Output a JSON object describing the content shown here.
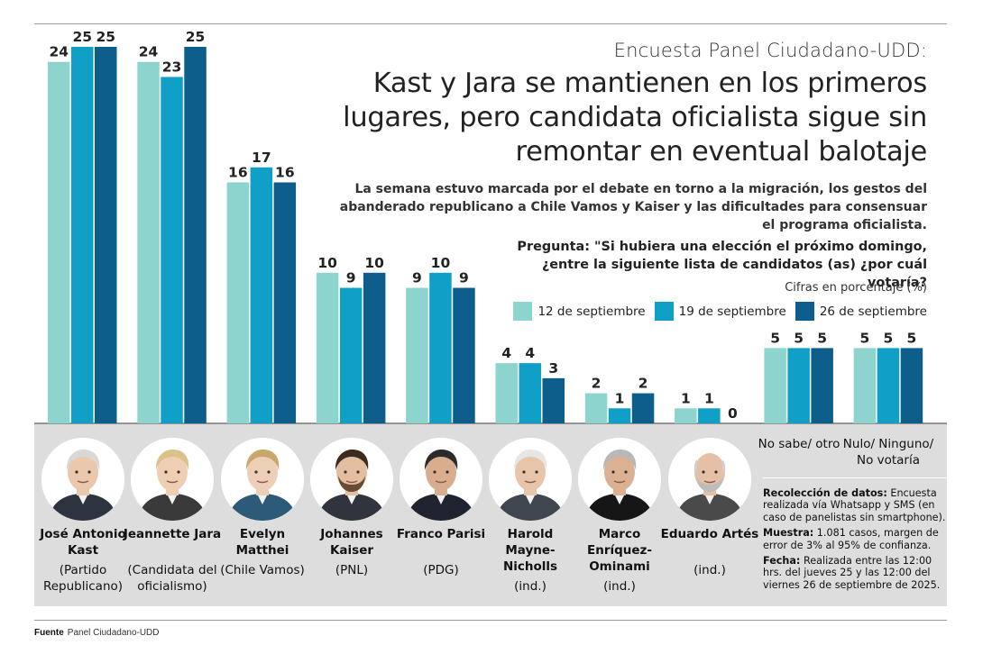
{
  "header": {
    "kicker": "Encuesta Panel Ciudadano-UDD:",
    "headline": "Kast y Jara se mantienen en los primeros lugares, pero candidata oficialista sigue sin remontar en eventual balotaje",
    "subtitle": "La semana estuvo marcada por el debate en torno a la migración, los gestos del abanderado republicano a Chile Vamos y Kaiser y las dificultades para consensuar el programa oficialista."
  },
  "question": "Pregunta: \"Si hubiera una elección el próximo domingo, ¿entre la siguiente lista de candidatos (as) ¿por cuál votaría?",
  "unit_note": "Cifras en porcentaje (%)",
  "colors": {
    "s1": "#8dd4cf",
    "s2": "#109fc7",
    "s3": "#0e5e8c",
    "panel": "#dddddd"
  },
  "chart_data": {
    "type": "bar",
    "categories": [
      "José Antonio Kast",
      "Jeannette Jara",
      "Evelyn Matthei",
      "Johannes Kaiser",
      "Franco Parisi",
      "Harold Mayne-Nicholls",
      "Marco Enríquez-Ominami",
      "Eduardo Artés",
      "No sabe/ otro",
      "Nulo/ Ninguno/ No votaría"
    ],
    "series": [
      {
        "name": "12 de septiembre",
        "color": "#8dd4cf",
        "values": [
          24,
          24,
          16,
          10,
          9,
          4,
          2,
          1,
          5,
          5
        ]
      },
      {
        "name": "19 de septiembre",
        "color": "#109fc7",
        "values": [
          25,
          23,
          17,
          9,
          10,
          4,
          1,
          1,
          5,
          5
        ]
      },
      {
        "name": "26 de septiembre",
        "color": "#0e5e8c",
        "values": [
          25,
          25,
          16,
          10,
          9,
          3,
          2,
          0,
          5,
          5
        ]
      }
    ],
    "ylim": [
      0,
      25
    ],
    "legend_position": "top-right",
    "grid": false,
    "xlabel": "",
    "ylabel": ""
  },
  "candidates": [
    {
      "name": "José Antonio Kast",
      "party": "(Partido Republicano)",
      "icon": "portrait-kast"
    },
    {
      "name": "Jeannette Jara",
      "party": "(Candidata del oficialismo)",
      "icon": "portrait-jara"
    },
    {
      "name": "Evelyn Matthei",
      "party": "(Chile Vamos)",
      "icon": "portrait-matthei"
    },
    {
      "name": "Johannes Kaiser",
      "party": "(PNL)",
      "icon": "portrait-kaiser"
    },
    {
      "name": "Franco Parisi",
      "party": "(PDG)",
      "icon": "portrait-parisi"
    },
    {
      "name": "Harold Mayne-Nicholls",
      "party": "(ind.)",
      "icon": "portrait-mayne-nicholls"
    },
    {
      "name": "Marco Enríquez-Ominami",
      "party": "(ind.)",
      "icon": "portrait-enriquez-ominami"
    },
    {
      "name": "Eduardo Artés",
      "party": "(ind.)",
      "icon": "portrait-artes"
    }
  ],
  "others": [
    {
      "label": "No sabe/ otro"
    },
    {
      "label": "Nulo/ Ninguno/ No votaría"
    }
  ],
  "notes": {
    "collection_label": "Recolección de datos:",
    "collection_text": "Encuesta realizada vía Whatsapp y SMS (en caso de panelistas sin smartphone).",
    "sample_label": "Muestra:",
    "sample_text": "1.081 casos, margen de error de 3% al 95% de confianza.",
    "date_label": "Fecha:",
    "date_text": "Realizada entre las 12:00 hrs. del jueves 25 y las 12:00 del viernes 26 de septiembre de 2025."
  },
  "source": {
    "label": "Fuente",
    "text": "Panel Ciudadano-UDD"
  }
}
